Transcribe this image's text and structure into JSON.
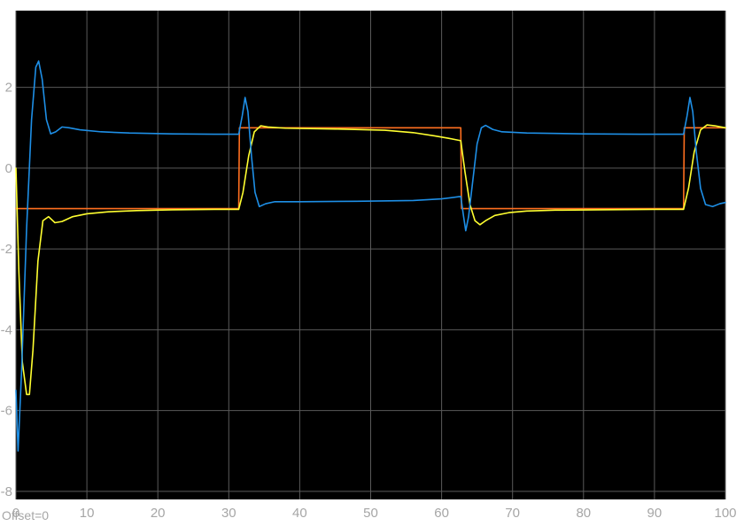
{
  "window": {
    "offset_text": "Offset=0"
  },
  "colors": {
    "background": "#ffffff",
    "axes_background": "#000000",
    "grid": "#5a5a5a",
    "tick_text": "#a6a6a6"
  },
  "chart_data": {
    "type": "line",
    "title": "",
    "xlabel": "",
    "ylabel": "",
    "xlim": [
      0,
      100
    ],
    "ylim": [
      -8.2,
      3.9
    ],
    "xticks": [
      0,
      10,
      20,
      30,
      40,
      50,
      60,
      70,
      80,
      90,
      100
    ],
    "yticks": [
      -8,
      -6,
      -4,
      -2,
      0,
      2
    ],
    "grid": true,
    "series": [
      {
        "color": "#ff6f1f",
        "points": [
          [
            0,
            -1
          ],
          [
            31.4,
            -1
          ],
          [
            31.5,
            1
          ],
          [
            62.7,
            1
          ],
          [
            62.8,
            -1
          ],
          [
            94.1,
            -1
          ],
          [
            94.2,
            1
          ],
          [
            100,
            1
          ]
        ]
      },
      {
        "color": "#ffff30",
        "points": [
          [
            0,
            0
          ],
          [
            0.4,
            -2.5
          ],
          [
            0.9,
            -4.8
          ],
          [
            1.5,
            -5.6
          ],
          [
            1.9,
            -5.6
          ],
          [
            2.4,
            -4.5
          ],
          [
            3.1,
            -2.3
          ],
          [
            3.8,
            -1.3
          ],
          [
            4.6,
            -1.2
          ],
          [
            5.5,
            -1.35
          ],
          [
            6.5,
            -1.32
          ],
          [
            8,
            -1.2
          ],
          [
            10,
            -1.13
          ],
          [
            13,
            -1.08
          ],
          [
            17,
            -1.05
          ],
          [
            22,
            -1.03
          ],
          [
            28,
            -1.02
          ],
          [
            31.4,
            -1.02
          ],
          [
            32,
            -0.6
          ],
          [
            32.8,
            0.3
          ],
          [
            33.6,
            0.9
          ],
          [
            34.5,
            1.05
          ],
          [
            35.5,
            1.02
          ],
          [
            38,
            0.99
          ],
          [
            45,
            0.97
          ],
          [
            52,
            0.94
          ],
          [
            56,
            0.88
          ],
          [
            59,
            0.8
          ],
          [
            61,
            0.74
          ],
          [
            62.7,
            0.68
          ],
          [
            63.3,
            -0.1
          ],
          [
            64,
            -0.9
          ],
          [
            64.7,
            -1.3
          ],
          [
            65.4,
            -1.4
          ],
          [
            66.2,
            -1.3
          ],
          [
            67.5,
            -1.17
          ],
          [
            69.5,
            -1.1
          ],
          [
            72,
            -1.06
          ],
          [
            76,
            -1.04
          ],
          [
            82,
            -1.03
          ],
          [
            90,
            -1.02
          ],
          [
            94.1,
            -1.02
          ],
          [
            94.8,
            -0.5
          ],
          [
            95.6,
            0.4
          ],
          [
            96.5,
            0.95
          ],
          [
            97.4,
            1.07
          ],
          [
            98.5,
            1.05
          ],
          [
            100,
            1.0
          ]
        ]
      },
      {
        "color": "#1e8fe6",
        "points": [
          [
            0,
            -5.5
          ],
          [
            0.3,
            -7.0
          ],
          [
            0.8,
            -5.0
          ],
          [
            1.5,
            -1.5
          ],
          [
            2.2,
            1.2
          ],
          [
            2.8,
            2.5
          ],
          [
            3.2,
            2.65
          ],
          [
            3.7,
            2.2
          ],
          [
            4.3,
            1.2
          ],
          [
            4.9,
            0.85
          ],
          [
            5.6,
            0.9
          ],
          [
            6.5,
            1.02
          ],
          [
            7.5,
            1.0
          ],
          [
            9,
            0.95
          ],
          [
            12,
            0.9
          ],
          [
            16,
            0.87
          ],
          [
            22,
            0.85
          ],
          [
            28,
            0.84
          ],
          [
            31.4,
            0.84
          ],
          [
            31.9,
            1.3
          ],
          [
            32.3,
            1.75
          ],
          [
            32.7,
            1.4
          ],
          [
            33.2,
            0.3
          ],
          [
            33.7,
            -0.6
          ],
          [
            34.3,
            -0.95
          ],
          [
            35.2,
            -0.88
          ],
          [
            36.5,
            -0.83
          ],
          [
            40,
            -0.83
          ],
          [
            48,
            -0.82
          ],
          [
            56,
            -0.8
          ],
          [
            60,
            -0.76
          ],
          [
            62.7,
            -0.7
          ],
          [
            63.1,
            -1.2
          ],
          [
            63.4,
            -1.55
          ],
          [
            63.8,
            -1.2
          ],
          [
            64.4,
            -0.3
          ],
          [
            65,
            0.6
          ],
          [
            65.6,
            1.0
          ],
          [
            66.2,
            1.06
          ],
          [
            67.2,
            0.96
          ],
          [
            68.5,
            0.9
          ],
          [
            72,
            0.87
          ],
          [
            80,
            0.85
          ],
          [
            88,
            0.84
          ],
          [
            94.1,
            0.84
          ],
          [
            94.6,
            1.3
          ],
          [
            95,
            1.75
          ],
          [
            95.4,
            1.4
          ],
          [
            95.9,
            0.4
          ],
          [
            96.5,
            -0.5
          ],
          [
            97.2,
            -0.9
          ],
          [
            98.2,
            -0.95
          ],
          [
            99.2,
            -0.88
          ],
          [
            100,
            -0.85
          ]
        ]
      }
    ]
  }
}
